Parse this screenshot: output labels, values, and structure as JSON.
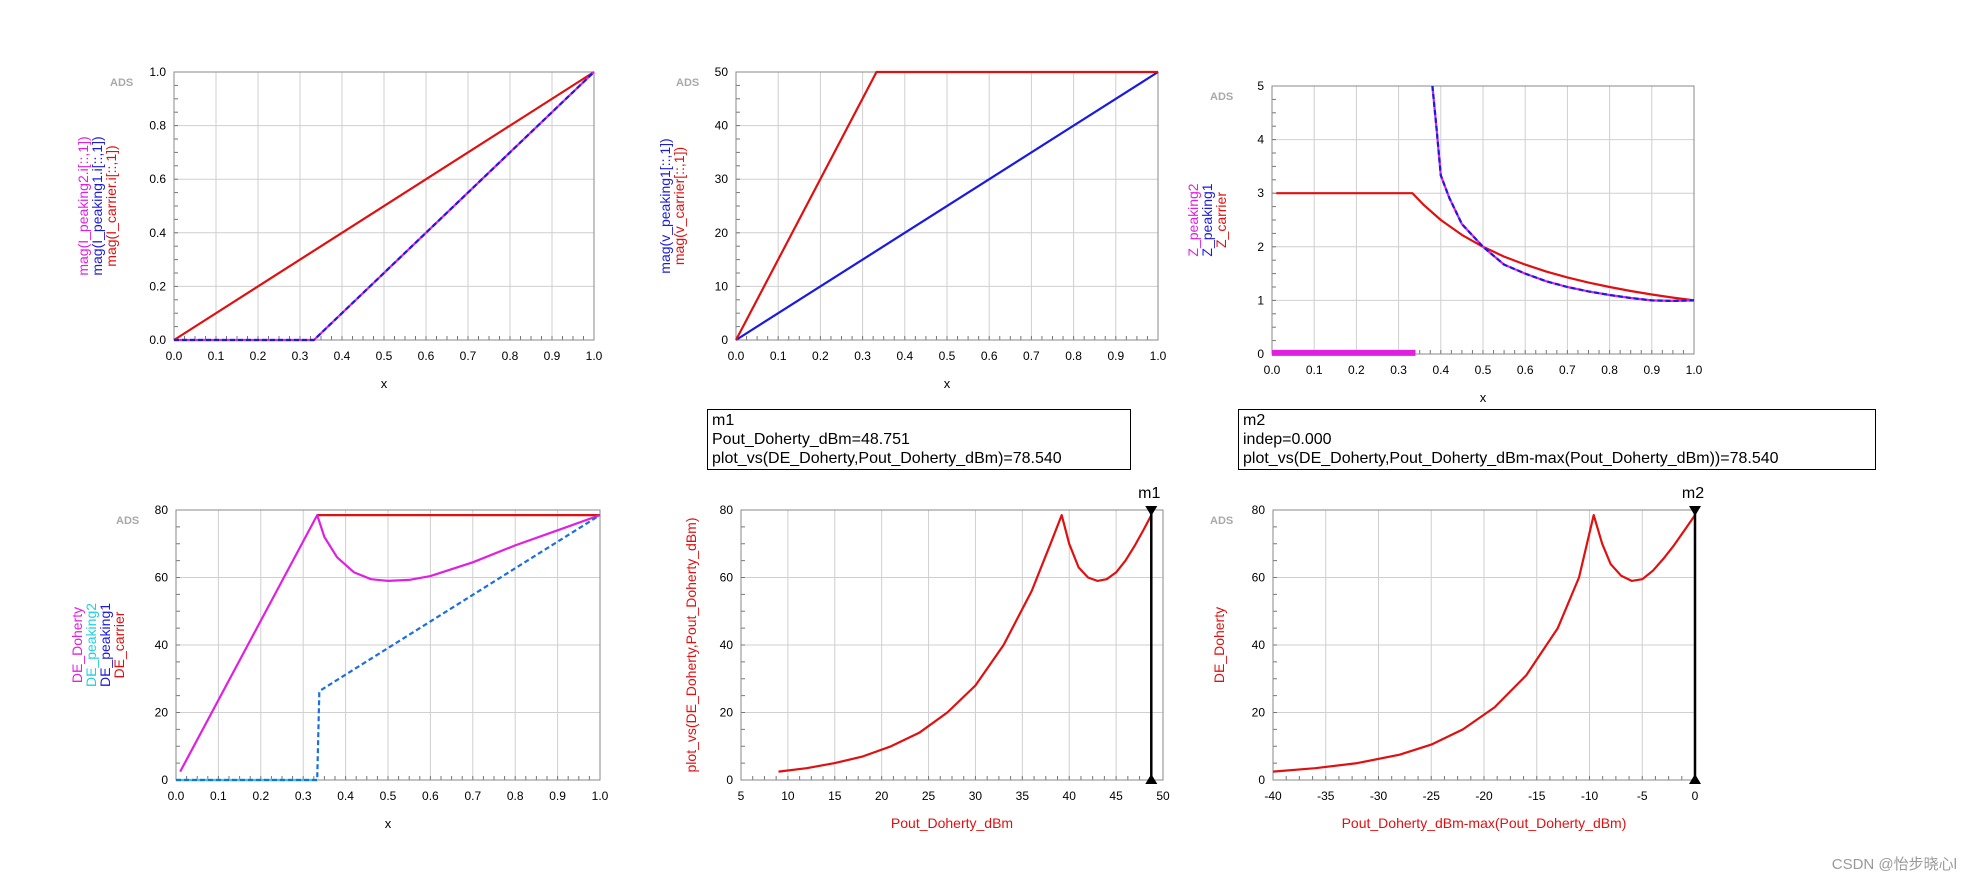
{
  "chart_data": [
    {
      "type": "line",
      "brand": "ADS",
      "xlabel": "x",
      "xlim": [
        0,
        1
      ],
      "ylim": [
        0,
        1
      ],
      "xticks": [
        "0.0",
        "0.1",
        "0.2",
        "0.3",
        "0.4",
        "0.5",
        "0.6",
        "0.7",
        "0.8",
        "0.9",
        "1.0"
      ],
      "yticks": [
        "0.0",
        "0.2",
        "0.4",
        "0.6",
        "0.8",
        "1.0"
      ],
      "ylabels": [
        {
          "text": "mag(I_peaking2.i[::,1])",
          "color": "#e020e0"
        },
        {
          "text": "mag(I_peaking1.i[::,1])",
          "color": "#1a1ae0"
        },
        {
          "text": "mag(I_carrier.i[::,1])",
          "color": "#e01010"
        }
      ],
      "series": [
        {
          "color": "#e01010",
          "dash": false,
          "x": [
            0,
            1
          ],
          "y": [
            0,
            1
          ]
        },
        {
          "color": "#e020e0",
          "dash": false,
          "x": [
            0,
            0.333,
            1
          ],
          "y": [
            0,
            0,
            1
          ]
        },
        {
          "color": "#1a1ae0",
          "dash": true,
          "x": [
            0,
            0.333,
            1
          ],
          "y": [
            0,
            0,
            1
          ]
        }
      ]
    },
    {
      "type": "line",
      "brand": "ADS",
      "xlabel": "x",
      "xlim": [
        0,
        1
      ],
      "ylim": [
        0,
        50
      ],
      "xticks": [
        "0.0",
        "0.1",
        "0.2",
        "0.3",
        "0.4",
        "0.5",
        "0.6",
        "0.7",
        "0.8",
        "0.9",
        "1.0"
      ],
      "yticks": [
        "0",
        "10",
        "20",
        "30",
        "40",
        "50"
      ],
      "ylabels": [
        {
          "text": "mag(v_peaking1[::,1])",
          "color": "#1a1ae0"
        },
        {
          "text": "mag(v_carrier[::,1])",
          "color": "#e01010"
        }
      ],
      "series": [
        {
          "color": "#1a1ae0",
          "dash": false,
          "x": [
            0,
            1
          ],
          "y": [
            0,
            50
          ]
        },
        {
          "color": "#e01010",
          "dash": false,
          "x": [
            0,
            0.333,
            1
          ],
          "y": [
            0,
            50,
            50
          ]
        }
      ]
    },
    {
      "type": "line",
      "brand": "ADS",
      "xlabel": "x",
      "xlim": [
        0,
        1
      ],
      "ylim": [
        0,
        5
      ],
      "xticks": [
        "0.0",
        "0.1",
        "0.2",
        "0.3",
        "0.4",
        "0.5",
        "0.6",
        "0.7",
        "0.8",
        "0.9",
        "1.0"
      ],
      "yticks": [
        "0",
        "1",
        "2",
        "3",
        "4",
        "5"
      ],
      "ylabels": [
        {
          "text": "Z_peaking2",
          "color": "#e020e0"
        },
        {
          "text": "Z_peaking1",
          "color": "#1a1ae0"
        },
        {
          "text": "Z_carrier",
          "color": "#e01010"
        }
      ],
      "series": [
        {
          "color": "#e01010",
          "dash": false,
          "x": [
            0.01,
            0.333,
            0.36,
            0.4,
            0.45,
            0.5,
            0.55,
            0.6,
            0.65,
            0.7,
            0.75,
            0.8,
            0.85,
            0.9,
            0.95,
            1.0
          ],
          "y": [
            3,
            3,
            2.778,
            2.5,
            2.222,
            2.0,
            1.818,
            1.667,
            1.538,
            1.429,
            1.333,
            1.25,
            1.176,
            1.111,
            1.053,
            1.0
          ]
        },
        {
          "color": "#e020e0",
          "dash": false,
          "x": [
            0.38,
            0.39,
            0.4,
            0.42,
            0.45,
            0.5,
            0.55,
            0.6,
            0.65,
            0.7,
            0.75,
            0.8,
            0.85,
            0.9,
            0.95,
            1.0
          ],
          "y": [
            5.0,
            4.197,
            3.333,
            2.917,
            2.424,
            2.0,
            1.667,
            1.5,
            1.357,
            1.25,
            1.167,
            1.1,
            1.045,
            1.0,
            0.99,
            1.0
          ]
        },
        {
          "color": "#1a1ae0",
          "dash": true,
          "x": [
            0.38,
            0.39,
            0.4,
            0.42,
            0.45,
            0.5,
            0.55,
            0.6,
            0.65,
            0.7,
            0.75,
            0.8,
            0.85,
            0.9,
            0.95,
            1.0
          ],
          "y": [
            5.0,
            4.197,
            3.333,
            2.917,
            2.424,
            2.0,
            1.667,
            1.5,
            1.357,
            1.25,
            1.167,
            1.1,
            1.045,
            1.0,
            0.99,
            1.0
          ]
        },
        {
          "color": "#e020e0",
          "dash": false,
          "width": 6,
          "x": [
            0,
            0.34
          ],
          "y": [
            0.02,
            0.02
          ]
        }
      ]
    },
    {
      "type": "line",
      "brand": "ADS",
      "xlabel": "x",
      "xlim": [
        0,
        1
      ],
      "ylim": [
        0,
        80
      ],
      "xticks": [
        "0.0",
        "0.1",
        "0.2",
        "0.3",
        "0.4",
        "0.5",
        "0.6",
        "0.7",
        "0.8",
        "0.9",
        "1.0"
      ],
      "yticks": [
        "0",
        "20",
        "40",
        "60",
        "80"
      ],
      "ylabels": [
        {
          "text": "DE_Doherty",
          "color": "#e020e0"
        },
        {
          "text": "DE_peaking2",
          "color": "#20d0e0"
        },
        {
          "text": "DE_peaking1",
          "color": "#1a1ae0"
        },
        {
          "text": "DE_carrier",
          "color": "#e01010"
        }
      ],
      "series": [
        {
          "color": "#e01010",
          "dash": false,
          "x": [
            0.333,
            1
          ],
          "y": [
            78.5,
            78.5
          ]
        },
        {
          "color": "#e020e0",
          "dash": false,
          "x": [
            0.01,
            0.333,
            0.35,
            0.38,
            0.42,
            0.46,
            0.5,
            0.55,
            0.6,
            0.7,
            0.8,
            0.9,
            1.0
          ],
          "y": [
            2.5,
            78.5,
            72,
            66,
            61.5,
            59.5,
            59,
            59.3,
            60.4,
            64.5,
            69.5,
            74,
            78.5
          ]
        },
        {
          "color": "#20d0e0",
          "dash": false,
          "x": [
            0,
            0.333
          ],
          "y": [
            0,
            0
          ]
        },
        {
          "color": "#1a70e0",
          "dash": true,
          "x": [
            0,
            0.333,
            0.338,
            0.34,
            1.0
          ],
          "y": [
            0,
            0,
            26,
            26.5,
            78.5
          ]
        }
      ]
    },
    {
      "type": "line",
      "brand": "",
      "xlabel": "Pout_Doherty_dBm",
      "xlim": [
        5,
        50
      ],
      "ylim": [
        0,
        80
      ],
      "xticks": [
        "5",
        "10",
        "15",
        "20",
        "25",
        "30",
        "35",
        "40",
        "45",
        "50"
      ],
      "yticks": [
        "0",
        "20",
        "40",
        "60",
        "80"
      ],
      "ylabels": [
        {
          "text": "plot_vs(DE_Doherty,Pout_Doherty_dBm)",
          "color": "#e01010"
        }
      ],
      "marker": {
        "label": "m1",
        "x": 48.751
      },
      "series": [
        {
          "color": "#e01010",
          "dash": false,
          "x": [
            9,
            12,
            15,
            18,
            21,
            24,
            27,
            30,
            33,
            36,
            38,
            39.2,
            40,
            41,
            42,
            43,
            44,
            45,
            46,
            47,
            48,
            48.75
          ],
          "y": [
            2.5,
            3.5,
            5,
            7,
            10,
            14,
            20,
            28,
            40,
            56,
            70,
            78.5,
            70,
            63,
            60,
            59,
            59.5,
            61.5,
            65,
            69.5,
            74.5,
            78.5
          ]
        }
      ]
    },
    {
      "type": "line",
      "brand": "ADS",
      "xlabel": "Pout_Doherty_dBm-max(Pout_Doherty_dBm)",
      "xlim": [
        -40,
        0
      ],
      "ylim": [
        0,
        80
      ],
      "xticks": [
        "-40",
        "-35",
        "-30",
        "-25",
        "-20",
        "-15",
        "-10",
        "-5",
        "0"
      ],
      "yticks": [
        "0",
        "20",
        "40",
        "60",
        "80"
      ],
      "ylabels": [
        {
          "text": "DE_Doherty",
          "color": "#e01010"
        }
      ],
      "marker": {
        "label": "m2",
        "x": 0
      },
      "series": [
        {
          "color": "#e01010",
          "dash": false,
          "x": [
            -40,
            -36,
            -32,
            -28,
            -25,
            -22,
            -19,
            -16,
            -13,
            -11,
            -9.6,
            -8.8,
            -8,
            -7,
            -6,
            -5,
            -4,
            -3,
            -2,
            -1,
            0
          ],
          "y": [
            2.5,
            3.5,
            5,
            7.5,
            10.5,
            15,
            21.5,
            31,
            45,
            60,
            78.5,
            70,
            64,
            60.5,
            59,
            59.5,
            62,
            65.5,
            69.5,
            74,
            78.5
          ]
        }
      ]
    }
  ],
  "markers": [
    {
      "title": "m1",
      "lines": [
        "Pout_Doherty_dBm=48.751",
        "plot_vs(DE_Doherty,Pout_Doherty_dBm)=78.540"
      ]
    },
    {
      "title": "m2",
      "lines": [
        "indep=0.000",
        "plot_vs(DE_Doherty,Pout_Doherty_dBm-max(Pout_Doherty_dBm))=78.540"
      ]
    }
  ],
  "watermark": "CSDN @怡步晓心l"
}
